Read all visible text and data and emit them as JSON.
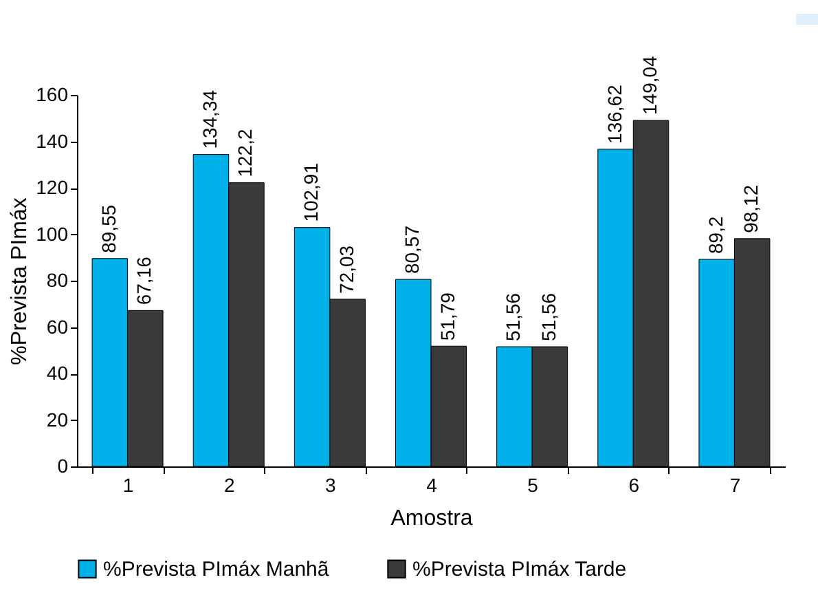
{
  "chart_data": {
    "type": "bar",
    "xlabel": "Amostra",
    "ylabel": "%Prevista PImáx",
    "categories": [
      "1",
      "2",
      "3",
      "4",
      "5",
      "6",
      "7"
    ],
    "series": [
      {
        "name": "%Prevista PImáx Manhã",
        "color": "#00b0e8",
        "values": [
          89.55,
          134.34,
          102.91,
          80.57,
          51.56,
          136.62,
          89.2
        ],
        "value_labels": [
          "89,55",
          "134,34",
          "102,91",
          "80,57",
          "51,56",
          "136,62",
          "89,2"
        ]
      },
      {
        "name": "%Prevista PImáx Tarde",
        "color": "#3a3a3a",
        "values": [
          67.16,
          122.2,
          72.03,
          51.79,
          51.56,
          149.04,
          98.12
        ],
        "value_labels": [
          "67,16",
          "122,2",
          "72,03",
          "51,79",
          "51,56",
          "149,04",
          "98,12"
        ]
      }
    ],
    "ylim": [
      0,
      160
    ],
    "yticks": [
      0,
      20,
      40,
      60,
      80,
      100,
      120,
      140,
      160
    ],
    "grid": false,
    "legend": "bottom"
  }
}
